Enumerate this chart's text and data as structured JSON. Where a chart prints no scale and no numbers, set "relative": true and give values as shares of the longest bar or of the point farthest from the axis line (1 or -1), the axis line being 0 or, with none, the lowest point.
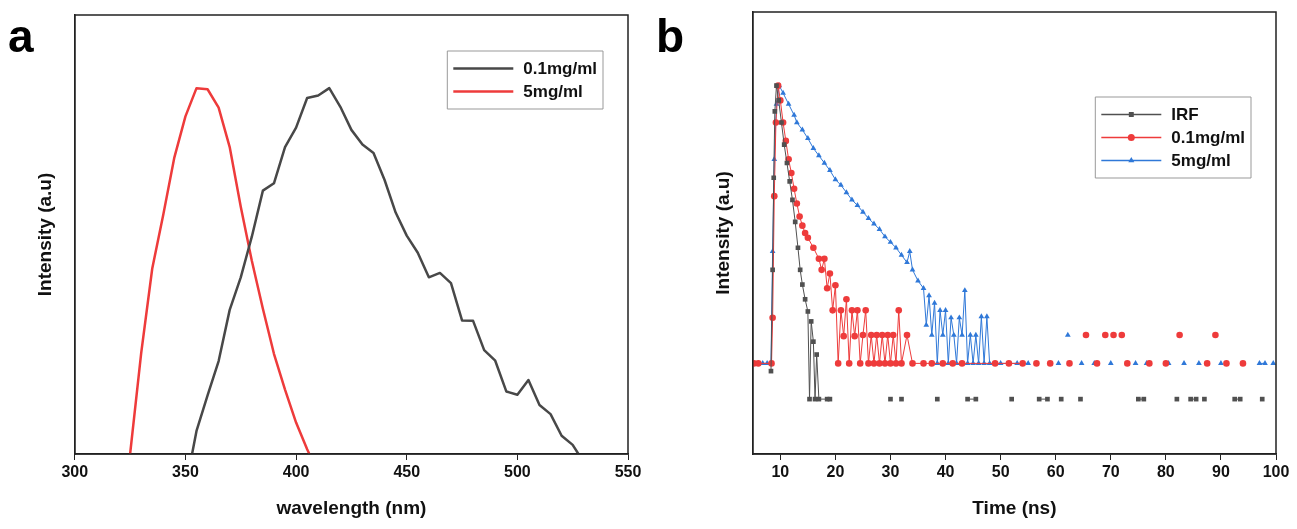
{
  "chart_data": [
    {
      "type": "line",
      "title": "a",
      "xlabel": "wavelength (nm)",
      "ylabel": "Intensity (a.u)",
      "relative": true,
      "xlim": [
        300,
        550
      ],
      "xticks": [
        300,
        350,
        400,
        450,
        500,
        550
      ],
      "legend": "top right",
      "marker": "none",
      "series": [
        {
          "name": "0.1mg/ml",
          "color": "#484848",
          "x": [
            353,
            355,
            360,
            365,
            370,
            375,
            380,
            385,
            390,
            395,
            400,
            405,
            410,
            415,
            420,
            425,
            430,
            435,
            440,
            445,
            450,
            455,
            460,
            465,
            470,
            475,
            480,
            485,
            490,
            495,
            500,
            505,
            510,
            515,
            520,
            525,
            527.6
          ],
          "values": [
            0,
            0.063,
            0.16,
            0.254,
            0.394,
            0.483,
            0.594,
            0.72,
            0.74,
            0.839,
            0.892,
            0.973,
            0.98,
            1,
            0.949,
            0.886,
            0.846,
            0.823,
            0.749,
            0.66,
            0.597,
            0.55,
            0.483,
            0.495,
            0.467,
            0.365,
            0.364,
            0.284,
            0.255,
            0.171,
            0.162,
            0.202,
            0.134,
            0.109,
            0.05,
            0.025,
            0
          ]
        },
        {
          "name": "5mg/ml",
          "color": "#ee3b3b",
          "x": [
            325,
            330,
            335,
            340,
            345,
            350,
            355,
            360,
            365,
            370,
            375,
            380,
            385,
            390,
            395,
            400,
            405,
            406
          ],
          "values": [
            0,
            0.276,
            0.507,
            0.655,
            0.811,
            0.923,
            1,
            0.997,
            0.947,
            0.839,
            0.676,
            0.528,
            0.397,
            0.274,
            0.176,
            0.086,
            0.013,
            0
          ]
        }
      ]
    },
    {
      "type": "line",
      "title": "b",
      "xlabel": "Time (ns)",
      "ylabel": "Intensity (a.u)",
      "relative": true,
      "xlim": [
        5,
        100
      ],
      "xticks": [
        10,
        20,
        30,
        40,
        50,
        60,
        70,
        80,
        90,
        100
      ],
      "legend": "top right",
      "series": [
        {
          "name": "IRF",
          "color": "#505050",
          "marker": "square",
          "x": [
            8.3,
            8.6,
            8.8,
            9.0,
            9.3,
            9.7,
            10.2,
            10.7,
            11.2,
            11.7,
            12.2,
            12.7,
            13.2,
            13.6,
            14,
            14.5,
            15,
            15.3,
            15.6,
            16,
            16.3,
            16.6,
            17,
            18.5,
            19,
            25,
            30,
            31,
            32,
            35,
            38.5,
            41,
            44,
            45.5,
            48,
            52,
            55,
            57,
            58.5,
            60,
            61,
            63,
            64.5,
            70,
            75,
            76,
            79,
            82,
            83,
            84.5,
            85.5,
            86,
            87,
            90,
            92.5,
            93.5,
            95,
            97.5
          ],
          "values": [
            0.225,
            0.5,
            0.75,
            0.93,
            1,
            0.96,
            0.9,
            0.84,
            0.79,
            0.74,
            0.69,
            0.63,
            0.56,
            0.5,
            0.46,
            0.42,
            0.387,
            0.149,
            0.36,
            0.305,
            0.149,
            0.27,
            0.149,
            0.149,
            0.149,
            null,
            0.149,
            null,
            0.149,
            null,
            0.149,
            null,
            0.149,
            0.149,
            null,
            0.149,
            null,
            0.149,
            0.149,
            null,
            0.149,
            null,
            0.149,
            null,
            0.149,
            0.149,
            null,
            0.149,
            null,
            0.149,
            0.149,
            null,
            0.149,
            null,
            0.149,
            0.149,
            null,
            0.149
          ]
        },
        {
          "name": "0.1mg/ml",
          "color": "#ee3b3b",
          "marker": "circle",
          "x": [
            5.2,
            6.0,
            8.4,
            8.6,
            8.9,
            9.2,
            9.6,
            10,
            10.5,
            11,
            11.5,
            12,
            12.5,
            13,
            13.5,
            14,
            14.5,
            15,
            16,
            17,
            17.5,
            18,
            18.5,
            19,
            19.5,
            20,
            20.5,
            21,
            21.5,
            22,
            22.5,
            23,
            23.5,
            24,
            24.5,
            25,
            25.5,
            26,
            26.5,
            27,
            27.5,
            28,
            28.5,
            29,
            29.5,
            30,
            30.5,
            31,
            31.5,
            32,
            33,
            34,
            36,
            37.5,
            39.5,
            41.3,
            43,
            49,
            51.5,
            54,
            55.3,
            56.5,
            58,
            59,
            61,
            62.5,
            64,
            65.5,
            66.5,
            67.5,
            68.2,
            69,
            69.7,
            70.5,
            71.2,
            72,
            72.6,
            73,
            75,
            77,
            78.5,
            80,
            81.2,
            82.5,
            85,
            87.5,
            88.2,
            89,
            90,
            91,
            92.5,
            94
          ],
          "values": [
            0.246,
            0.246,
            0.246,
            0.37,
            0.7,
            0.9,
            1,
            0.96,
            0.9,
            0.85,
            0.8,
            0.763,
            0.72,
            0.68,
            0.645,
            0.62,
            0.6,
            0.587,
            0.56,
            0.53,
            0.5,
            0.53,
            0.45,
            0.49,
            0.39,
            0.458,
            0.246,
            0.39,
            0.32,
            0.42,
            0.246,
            0.39,
            0.32,
            0.39,
            0.246,
            0.323,
            0.39,
            0.246,
            0.323,
            0.246,
            0.323,
            0.246,
            0.323,
            0.246,
            0.323,
            0.246,
            0.323,
            0.246,
            0.39,
            0.246,
            0.323,
            0.246,
            0.246,
            0.246,
            0.246,
            0.246,
            0.246,
            0.246,
            0.246,
            0.246,
            null,
            0.246,
            null,
            0.246,
            null,
            0.246,
            null,
            0.323,
            null,
            0.246,
            null,
            0.323,
            null,
            0.323,
            null,
            0.323,
            null,
            0.246,
            null,
            0.246,
            null,
            0.246,
            null,
            0.323,
            null,
            0.246,
            null,
            0.323,
            null,
            0.246,
            null,
            0.246
          ]
        },
        {
          "name": "5mg/ml",
          "color": "#2f78d8",
          "marker": "triangle",
          "x": [
            6.8,
            7.6,
            8.3,
            8.6,
            8.9,
            9.3,
            9.8,
            10.5,
            11.5,
            12.5,
            13,
            14,
            15,
            16,
            17,
            18,
            19,
            20,
            21,
            22,
            23,
            24,
            25,
            26,
            27,
            28,
            29,
            30,
            31,
            32,
            33,
            33.5,
            34,
            35,
            36,
            36.5,
            37,
            37.5,
            38,
            38.5,
            39,
            39.5,
            40,
            40.5,
            41,
            41.5,
            42,
            42.5,
            43,
            43.5,
            44,
            44.5,
            45,
            45.5,
            46,
            46.5,
            47,
            47.5,
            48,
            50,
            53,
            55,
            57.8,
            60.5,
            61.2,
            62.2,
            63.8,
            64.7,
            65.5,
            67,
            69,
            70,
            71,
            74.5,
            75.5,
            76.5,
            78.7,
            80.5,
            82.5,
            83.3,
            84,
            86,
            89,
            90,
            96,
            97,
            98,
            98.8,
            99.5
          ],
          "values": [
            0.246,
            0.246,
            0.246,
            0.55,
            0.8,
            0.95,
            1,
            0.98,
            0.95,
            0.92,
            0.9,
            0.88,
            0.857,
            0.83,
            0.81,
            0.79,
            0.77,
            0.745,
            0.73,
            0.71,
            0.69,
            0.675,
            0.657,
            0.64,
            0.625,
            0.61,
            0.59,
            0.575,
            0.56,
            0.54,
            0.52,
            0.55,
            0.5,
            0.47,
            0.45,
            0.35,
            0.43,
            0.323,
            0.41,
            0.246,
            0.39,
            0.323,
            0.39,
            0.246,
            0.37,
            0.323,
            0.246,
            0.37,
            0.323,
            0.444,
            0.246,
            0.323,
            0.246,
            0.323,
            0.246,
            0.373,
            0.246,
            0.373,
            0.246,
            0.246,
            0.246,
            0.246,
            null,
            0.246,
            null,
            0.323,
            null,
            0.246,
            null,
            0.246,
            null,
            0.246,
            null,
            0.246,
            null,
            0.246,
            null,
            0.246,
            null,
            0.246,
            null,
            0.246,
            null,
            0.246,
            null,
            0.246,
            0.246,
            null,
            0.246
          ]
        }
      ]
    }
  ]
}
